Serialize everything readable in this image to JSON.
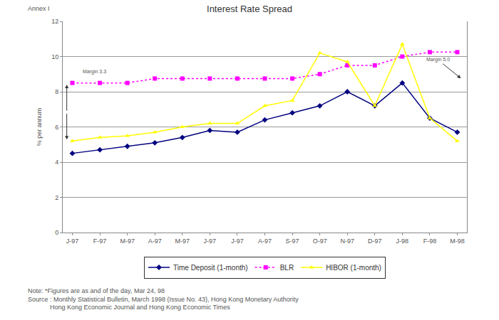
{
  "chart_data": {
    "type": "line",
    "title": "Interest Rate Spread",
    "caption": "Annex I",
    "ylabel": "% per annum",
    "categories": [
      "J-97",
      "F-97",
      "M-97",
      "A-97",
      "M-97",
      "J-97",
      "J-97",
      "A-97",
      "S-97",
      "O-97",
      "N-97",
      "D-97",
      "J-98",
      "F-98",
      "M-98"
    ],
    "series": [
      {
        "name": "Time Deposit (1-month)",
        "color": "#000080",
        "marker": "diamond",
        "line_style": "solid",
        "values": [
          4.5,
          4.7,
          4.9,
          5.1,
          5.4,
          5.8,
          5.7,
          6.4,
          6.8,
          7.2,
          8.0,
          7.2,
          8.5,
          6.5,
          5.7
        ]
      },
      {
        "name": "BLR",
        "color": "#ff00ff",
        "marker": "square",
        "line_style": "dot",
        "values": [
          8.5,
          8.5,
          8.5,
          8.75,
          8.75,
          8.75,
          8.75,
          8.75,
          8.75,
          9.0,
          9.5,
          9.5,
          10.0,
          10.25,
          10.25
        ]
      },
      {
        "name": "HIBOR (1-month)",
        "color": "#ffff00",
        "marker": "triangle",
        "line_style": "solid",
        "values": [
          5.2,
          5.4,
          5.5,
          5.7,
          6.0,
          6.2,
          6.2,
          7.2,
          7.5,
          10.2,
          9.7,
          7.2,
          10.7,
          6.5,
          5.2
        ]
      }
    ],
    "ylim": [
      0,
      12
    ],
    "yticks": [
      0,
      2,
      4,
      6,
      8,
      10,
      12
    ],
    "grid": true,
    "legend": "bottom",
    "annotations": [
      "Margin 3.3",
      "Margin 5.0"
    ],
    "notes": [
      "Note: *Figures are as and of the day, Mar 24, 98",
      "Source : Monthly Statistical Bulletin, March 1998 (Issue No. 43), Hong Kong Monetary Authority",
      "Hong Kong Economic Journal and Hong Kong Economic Times"
    ]
  }
}
